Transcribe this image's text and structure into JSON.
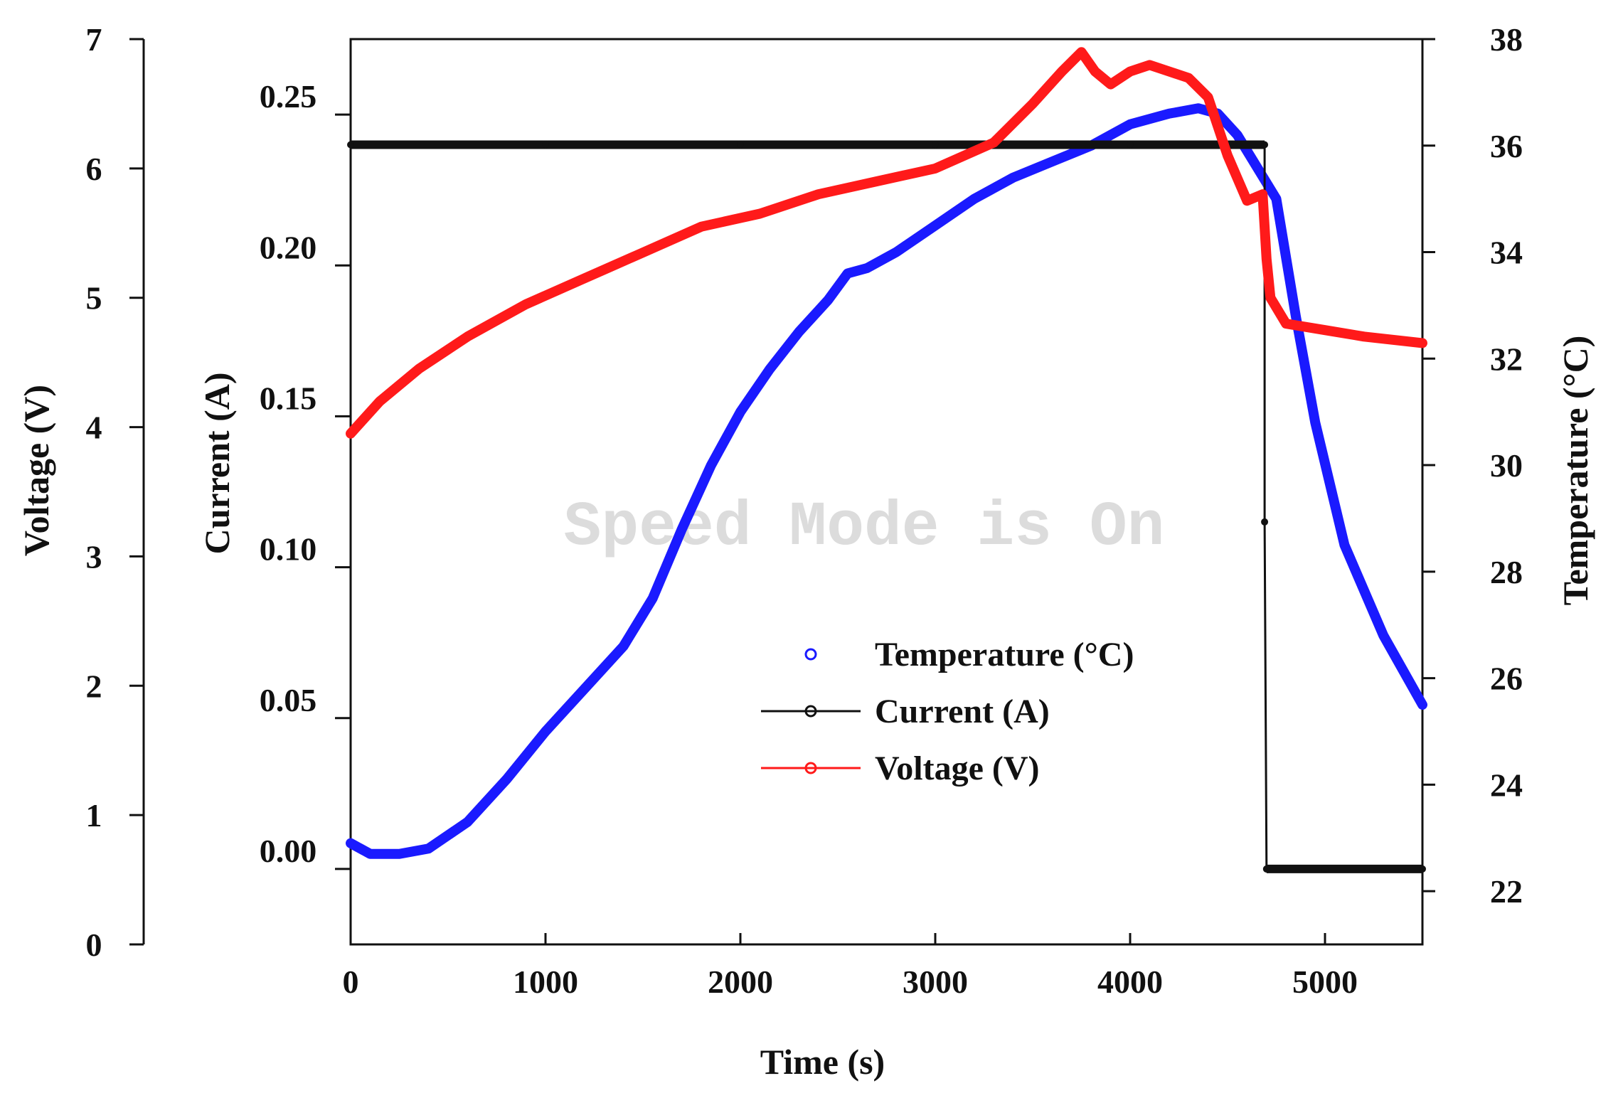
{
  "chart_data": {
    "type": "line",
    "xlabel": "Time (s)",
    "xlim": [
      0,
      5500
    ],
    "xticks": [
      0,
      1000,
      2000,
      3000,
      4000,
      5000
    ],
    "axes": {
      "voltage": {
        "label": "Voltage (V)",
        "lim": [
          0,
          7
        ],
        "ticks": [
          0,
          1,
          2,
          3,
          4,
          5,
          6,
          7
        ]
      },
      "current": {
        "label": "Current (A)",
        "lim": [
          -0.025,
          0.275
        ],
        "ticks": [
          "0.00",
          "0.05",
          "0.10",
          "0.15",
          "0.20",
          "0.25"
        ]
      },
      "temperature": {
        "label": "Temperature (°C)",
        "lim": [
          21,
          38
        ],
        "ticks": [
          22,
          24,
          26,
          28,
          30,
          32,
          34,
          36,
          38
        ]
      }
    },
    "series": [
      {
        "name": "Temperature (°C)",
        "axis": "temperature",
        "color": "#1a1aff",
        "marker": "o",
        "x": [
          0,
          100,
          250,
          400,
          600,
          800,
          1000,
          1200,
          1400,
          1550,
          1700,
          1850,
          2000,
          2150,
          2300,
          2450,
          2550,
          2650,
          2800,
          3000,
          3200,
          3400,
          3600,
          3800,
          4000,
          4200,
          4350,
          4450,
          4550,
          4650,
          4750,
          4850,
          4950,
          5100,
          5300,
          5500
        ],
        "y": [
          22.9,
          22.7,
          22.7,
          22.8,
          23.3,
          24.1,
          25.0,
          25.8,
          26.6,
          27.5,
          28.8,
          30.0,
          31.0,
          31.8,
          32.5,
          33.1,
          33.6,
          33.7,
          34.0,
          34.5,
          35.0,
          35.4,
          35.7,
          36.0,
          36.4,
          36.6,
          36.7,
          36.6,
          36.2,
          35.6,
          35.0,
          32.8,
          30.8,
          28.5,
          26.8,
          25.5
        ]
      },
      {
        "name": "Current (A)",
        "axis": "current",
        "color": "#111111",
        "marker": "x",
        "x": [
          0,
          1000,
          2000,
          3000,
          4000,
          4690,
          4690,
          4700,
          5000,
          5500
        ],
        "y": [
          0.24,
          0.24,
          0.24,
          0.24,
          0.24,
          0.24,
          0.115,
          0.0,
          0.0,
          0.0
        ]
      },
      {
        "name": "Voltage (V)",
        "axis": "voltage",
        "color": "#ff1a1a",
        "marker": "o",
        "x": [
          0,
          150,
          350,
          600,
          900,
          1200,
          1500,
          1800,
          2100,
          2400,
          2700,
          3000,
          3300,
          3500,
          3650,
          3750,
          3820,
          3900,
          4000,
          4100,
          4200,
          4300,
          4400,
          4500,
          4600,
          4680,
          4700,
          4720,
          4800,
          5000,
          5200,
          5500
        ],
        "y": [
          3.95,
          4.2,
          4.45,
          4.7,
          4.95,
          5.15,
          5.35,
          5.55,
          5.65,
          5.8,
          5.9,
          6.0,
          6.2,
          6.5,
          6.75,
          6.9,
          6.75,
          6.65,
          6.75,
          6.8,
          6.75,
          6.7,
          6.55,
          6.1,
          5.75,
          5.8,
          5.3,
          5.0,
          4.8,
          4.75,
          4.7,
          4.65
        ]
      }
    ],
    "legend": {
      "position": "center",
      "entries": [
        "Temperature (°C)",
        "Current (A)",
        "Voltage (V)"
      ]
    },
    "watermark": "Speed Mode is On"
  }
}
